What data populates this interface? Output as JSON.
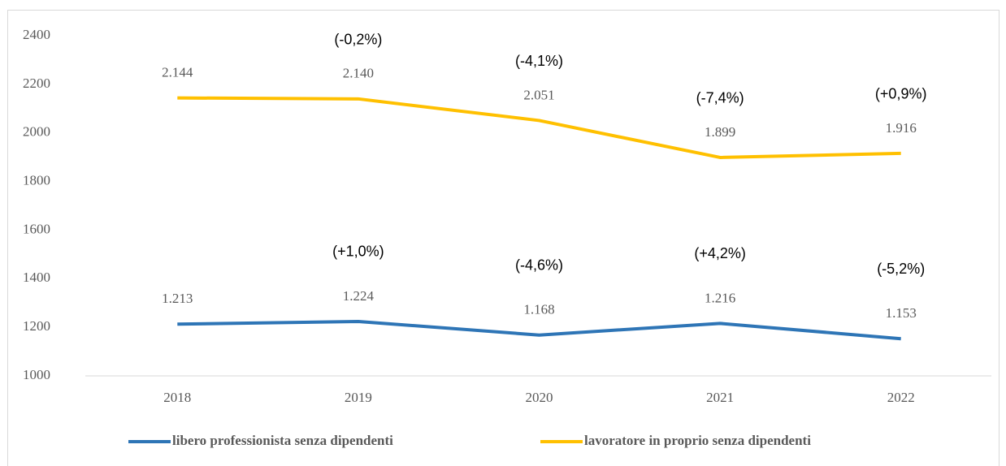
{
  "chart_data": {
    "type": "line",
    "categories": [
      "2018",
      "2019",
      "2020",
      "2021",
      "2022"
    ],
    "series": [
      {
        "name": "libero professionista senza dipendenti",
        "color": "#2e75b6",
        "values": [
          1213,
          1224,
          1168,
          1216,
          1153
        ],
        "value_labels": [
          "1.213",
          "1.224",
          "1.168",
          "1.216",
          "1.153"
        ],
        "annotations": [
          null,
          "(+1,0%)",
          "(-4,6%)",
          "(+4,2%)",
          "(-5,2%)"
        ]
      },
      {
        "name": "lavoratore in proprio senza dipendenti",
        "color": "#ffc000",
        "values": [
          2144,
          2140,
          2051,
          1899,
          1916
        ],
        "value_labels": [
          "2.144",
          "2.140",
          "2.051",
          "1.899",
          "1.916"
        ],
        "annotations": [
          null,
          "(-0,2%)",
          "(-4,1%)",
          "(-7,4%)",
          "(+0,9%)"
        ]
      }
    ],
    "ylim": [
      1000,
      2400
    ],
    "yticks": [
      1000,
      1200,
      1400,
      1600,
      1800,
      2000,
      2200,
      2400
    ],
    "grid": false,
    "legend": "bottom"
  }
}
